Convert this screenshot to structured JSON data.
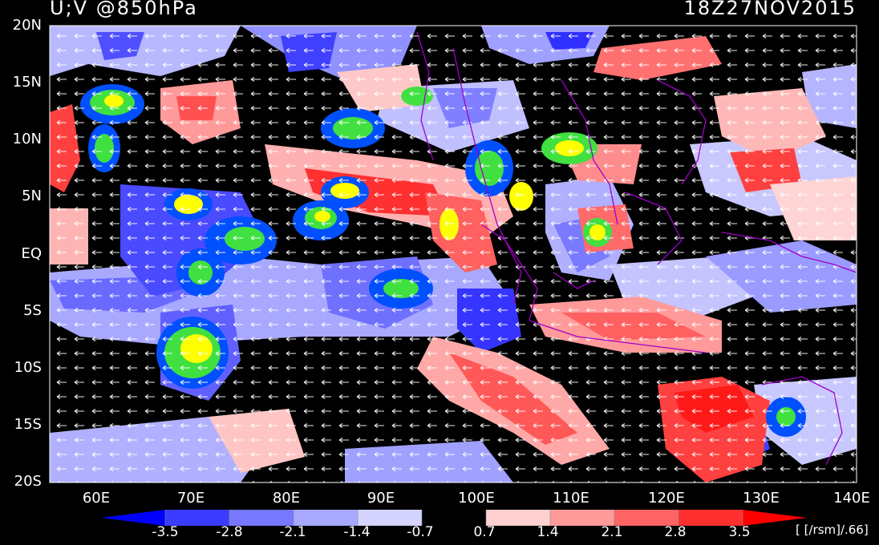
{
  "title_left": "U;V @850hPa",
  "title_right": "18Z27NOV2015",
  "lat_labels": [
    "20N",
    "15N",
    "10N",
    "5N",
    "EQ",
    "5S",
    "10S",
    "15S",
    "20S"
  ],
  "lon_labels": [
    "60E",
    "70E",
    "80E",
    "90E",
    "100E",
    "110E",
    "120E",
    "130E",
    "140E"
  ],
  "colorbar": {
    "labels": [
      "-3.5",
      "-2.8",
      "-2.1",
      "-1.4",
      "-0.7",
      "0.7",
      "1.4",
      "2.1",
      "2.8",
      "3.5"
    ],
    "colors": [
      "#0000ff",
      "#3c3cff",
      "#7878ff",
      "#a8a8ff",
      "#d4d4ff",
      "#000000",
      "#ffd0d0",
      "#ff9a9a",
      "#ff6464",
      "#ff3030",
      "#ff0000"
    ],
    "units": "[ [/rsm]/.66]"
  },
  "colors": {
    "background": "#000000",
    "coast": "#a000c8",
    "vector": "#ffffff",
    "precip_high": "#ffff00",
    "precip_mid": "#40e040",
    "precip_low": "#0050ff"
  }
}
